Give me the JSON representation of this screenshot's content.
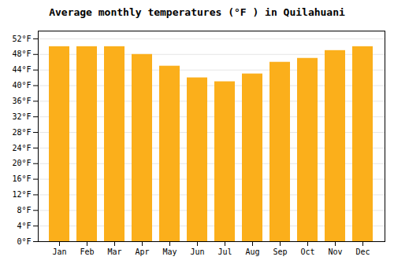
{
  "chart_data": {
    "type": "bar",
    "title": "Average monthly temperatures (°F ) in Quilahuani",
    "categories": [
      "Jan",
      "Feb",
      "Mar",
      "Apr",
      "May",
      "Jun",
      "Jul",
      "Aug",
      "Sep",
      "Oct",
      "Nov",
      "Dec"
    ],
    "values": [
      50,
      50,
      50,
      48,
      45,
      42,
      41,
      43,
      46,
      47,
      49,
      50
    ],
    "color": "#FBAF1B",
    "ylim": [
      0,
      54
    ],
    "yticks": [
      {
        "value": 0,
        "label": "0°F"
      },
      {
        "value": 4,
        "label": "4°F"
      },
      {
        "value": 8,
        "label": "8°F"
      },
      {
        "value": 12,
        "label": "12°F"
      },
      {
        "value": 16,
        "label": "16°F"
      },
      {
        "value": 20,
        "label": "20°F"
      },
      {
        "value": 24,
        "label": "24°F"
      },
      {
        "value": 28,
        "label": "28°F"
      },
      {
        "value": 32,
        "label": "32°F"
      },
      {
        "value": 36,
        "label": "36°F"
      },
      {
        "value": 40,
        "label": "40°F"
      },
      {
        "value": 44,
        "label": "44°F"
      },
      {
        "value": 48,
        "label": "48°F"
      },
      {
        "value": 52,
        "label": "52°F"
      }
    ],
    "grid": true
  }
}
